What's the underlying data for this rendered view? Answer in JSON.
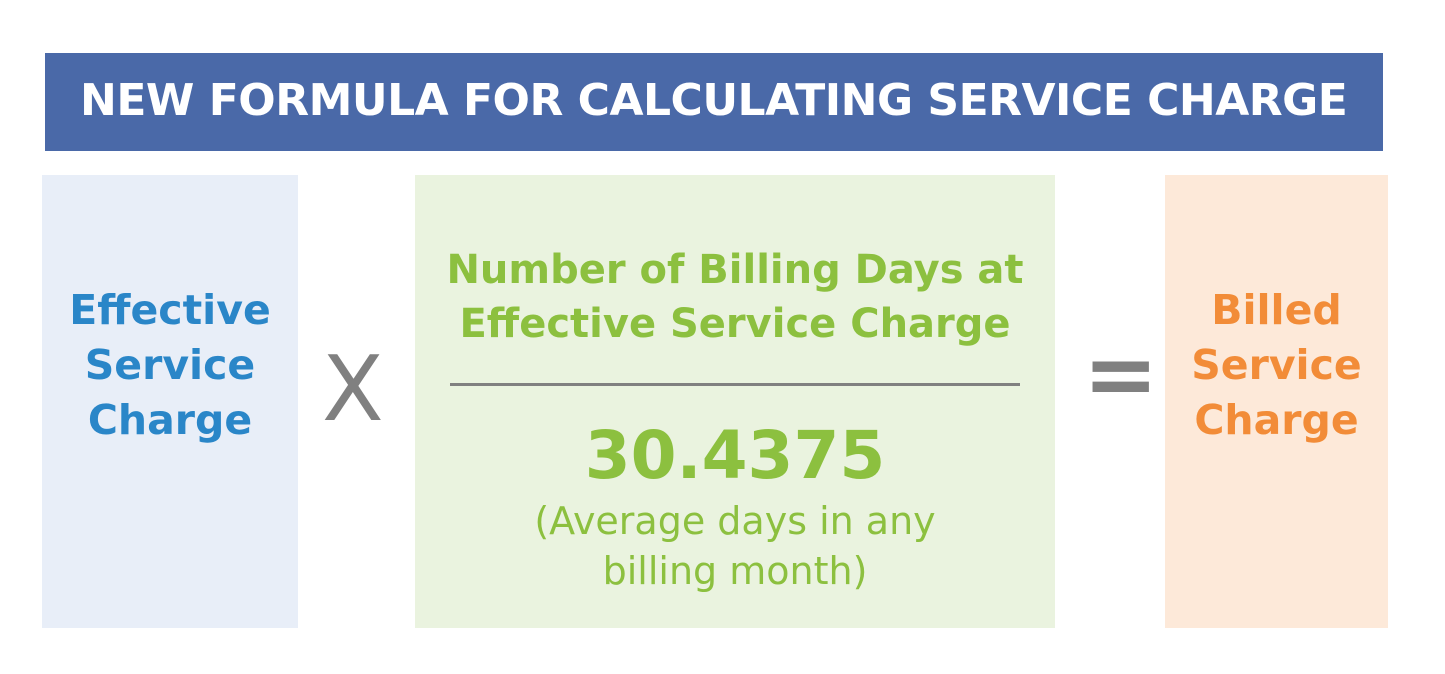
{
  "title": "NEW FORMULA FOR CALCULATING SERVICE CHARGE",
  "left_term": "Effective Service Charge",
  "operator_multiply": "X",
  "fraction": {
    "numerator": "Number of Billing Days at Effective Service Charge",
    "denominator": "30.4375",
    "note": "(Average days in any billing month)"
  },
  "operator_equals": "=",
  "result_term": "Billed Service Charge",
  "colors": {
    "header": "#4a69a8",
    "left": "#2a86c8",
    "middle": "#8cc03f",
    "right": "#f28c38",
    "operator": "#808080"
  }
}
